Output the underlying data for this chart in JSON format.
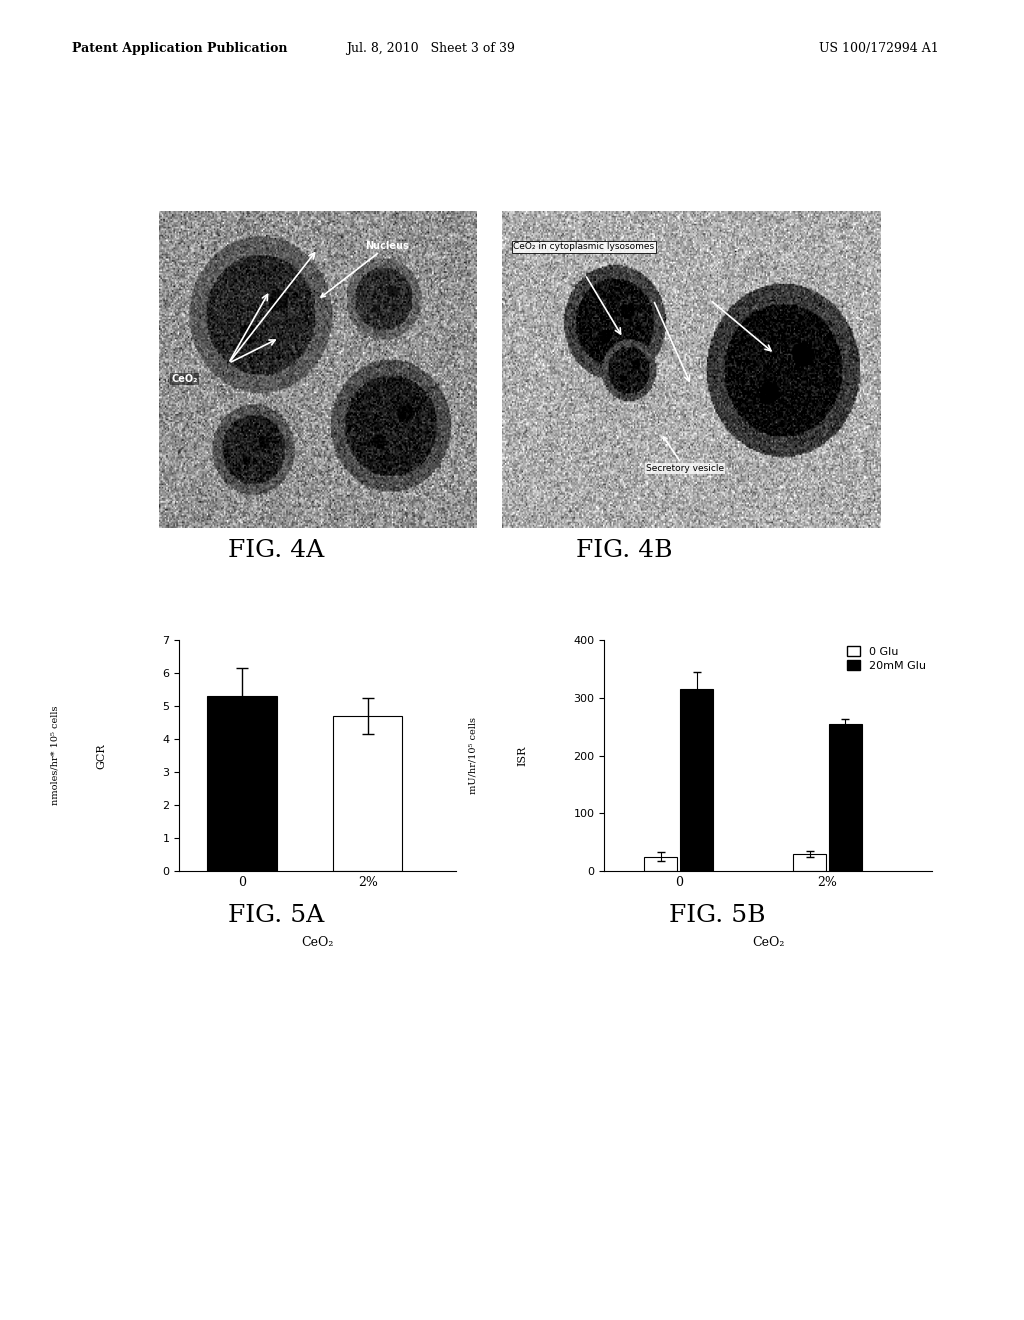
{
  "header_left": "Patent Application Publication",
  "header_mid": "Jul. 8, 2010   Sheet 3 of 39",
  "header_right": "US 100/172994 A1",
  "fig4a_label": "FIG. 4A",
  "fig4b_label": "FIG. 4B",
  "fig5a_label": "FIG. 5A",
  "fig5b_label": "FIG. 5B",
  "fig5a": {
    "categories": [
      "0",
      "2%"
    ],
    "values": [
      5.3,
      4.7
    ],
    "errors": [
      0.85,
      0.55
    ],
    "colors": [
      "#000000",
      "#ffffff"
    ],
    "ylabel_line1": "GCR",
    "ylabel_line2": "nmoles/hr* 10⁵ cells",
    "xlabel": "CeO₂",
    "ylim": [
      0,
      7
    ],
    "yticks": [
      0,
      1,
      2,
      3,
      4,
      5,
      6,
      7
    ]
  },
  "fig5b": {
    "groups": [
      "0",
      "2%"
    ],
    "series": [
      {
        "label": "0 Glu",
        "color": "#ffffff",
        "values": [
          25,
          30
        ],
        "errors": [
          8,
          5
        ]
      },
      {
        "label": "20mM Glu",
        "color": "#000000",
        "values": [
          315,
          255
        ],
        "errors": [
          30,
          8
        ]
      }
    ],
    "ylabel_line1": "ISR",
    "ylabel_line2": "mU/hr/10⁵ cells",
    "xlabel": "CeO₂",
    "ylim": [
      0,
      400
    ],
    "yticks": [
      0,
      100,
      200,
      300,
      400
    ]
  },
  "bg_color": "#ffffff",
  "text_color": "#000000",
  "header_fontsize": 9,
  "fig_label_fontsize": 18
}
